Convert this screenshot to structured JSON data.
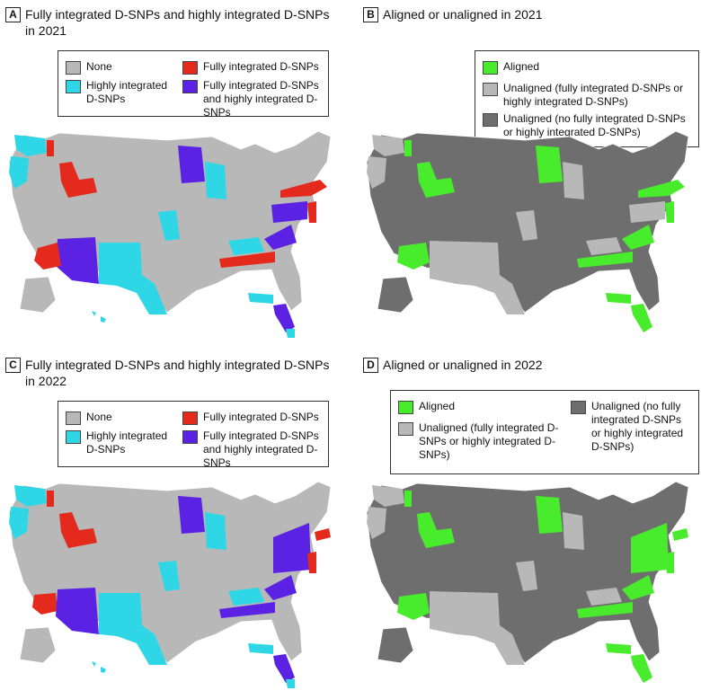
{
  "colors": {
    "none": "#b8b8b8",
    "fully": "#e32a1c",
    "highly": "#2fd7e6",
    "both": "#5b22e4",
    "aligned": "#49ec2c",
    "unaligned_fh": "#b8b8b8",
    "unaligned_no": "#6e6e6e",
    "water": "#ffffff"
  },
  "panels": {
    "a": {
      "label": "A",
      "title": "Fully integrated D-SNPs and highly integrated D-SNPs in 2021",
      "legend": {
        "none": "None",
        "fully": "Fully integrated D-SNPs",
        "highly": "Highly integrated D-SNPs",
        "both": "Fully integrated D-SNPs and highly integrated D-SNPs"
      }
    },
    "b": {
      "label": "B",
      "title": "Aligned or unaligned in 2021",
      "legend": {
        "aligned": "Aligned",
        "unaligned_fh": "Unaligned (fully integrated D-SNPs or highly integrated D-SNPs)",
        "unaligned_no": "Unaligned (no fully integrated D-SNPs or highly integrated D-SNPs)"
      }
    },
    "c": {
      "label": "C",
      "title": "Fully integrated D-SNPs and highly integrated D-SNPs in 2022",
      "legend": {
        "none": "None",
        "fully": "Fully integrated D-SNPs",
        "highly": "Highly integrated D-SNPs",
        "both": "Fully integrated D-SNPs and highly integrated D-SNPs"
      }
    },
    "d": {
      "label": "D",
      "title": "Aligned or unaligned in 2022",
      "legend": {
        "aligned": "Aligned",
        "unaligned_fh": "Unaligned (fully integrated D-SNPs or highly integrated D-SNPs)",
        "unaligned_no": "Unaligned (no fully integrated D-SNPs or highly integrated D-SNPs)"
      }
    }
  }
}
